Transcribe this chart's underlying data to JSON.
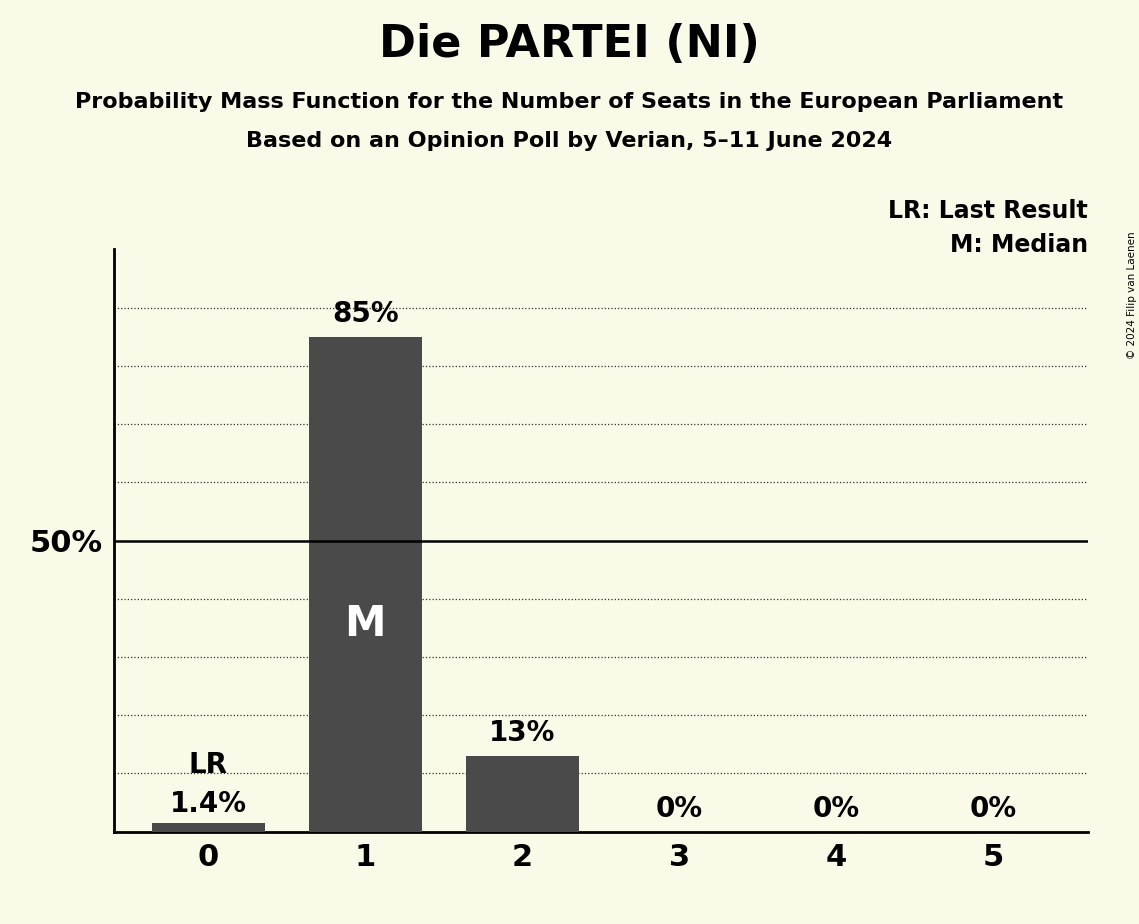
{
  "title": "Die PARTEI (NI)",
  "subtitle1": "Probability Mass Function for the Number of Seats in the European Parliament",
  "subtitle2": "Based on an Opinion Poll by Verian, 5–11 June 2024",
  "copyright": "© 2024 Filip van Laenen",
  "categories": [
    0,
    1,
    2,
    3,
    4,
    5
  ],
  "values": [
    1.4,
    85,
    13,
    0,
    0,
    0
  ],
  "bar_color": "#4a4a4a",
  "bg_color": "#FAFAE8",
  "median_seat": 1,
  "lr_seat": 0,
  "fifty_pct_line": 50,
  "legend_lr": "LR: Last Result",
  "legend_m": "M: Median",
  "bar_labels": [
    "1.4%",
    "85%",
    "13%",
    "0%",
    "0%",
    "0%"
  ],
  "ytick_label": "50%",
  "ytick_value": 50,
  "dotted_lines": [
    10,
    20,
    30,
    40,
    60,
    70,
    80,
    90
  ],
  "title_fontsize": 32,
  "subtitle_fontsize": 16,
  "bar_label_fontsize": 20,
  "axis_label_fontsize": 22,
  "legend_fontsize": 17,
  "ylabel_fontsize": 22,
  "m_fontsize": 30,
  "lr_fontsize": 20
}
